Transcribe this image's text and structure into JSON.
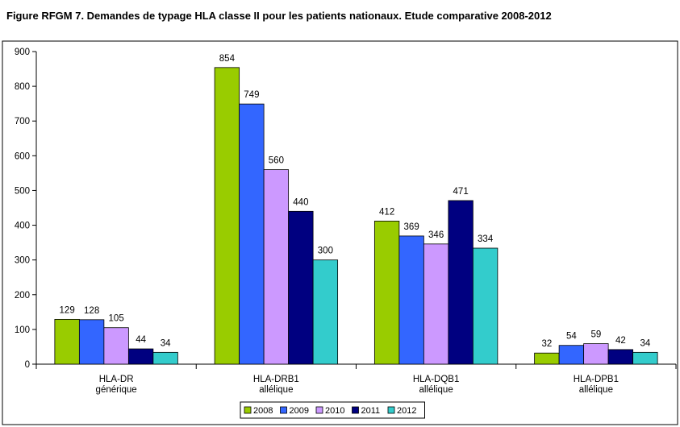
{
  "chart_data": {
    "type": "bar",
    "title": "Figure RFGM 7. Demandes de typage HLA classe II pour les patients nationaux. Etude comparative 2008-2012",
    "categories": [
      [
        "HLA-DR",
        "générique"
      ],
      [
        "HLA-DRB1",
        "allélique"
      ],
      [
        "HLA-DQB1",
        "allélique"
      ],
      [
        "HLA-DPB1",
        "allélique"
      ]
    ],
    "series": [
      {
        "name": "2008",
        "color": "#99CC00",
        "values": [
          129,
          854,
          412,
          32
        ]
      },
      {
        "name": "2009",
        "color": "#3366FF",
        "values": [
          128,
          749,
          369,
          54
        ]
      },
      {
        "name": "2010",
        "color": "#CC99FF",
        "values": [
          105,
          560,
          346,
          59
        ]
      },
      {
        "name": "2011",
        "color": "#000080",
        "values": [
          44,
          440,
          471,
          42
        ]
      },
      {
        "name": "2012",
        "color": "#33CCCC",
        "values": [
          34,
          300,
          334,
          34
        ]
      }
    ],
    "ylim": [
      0,
      900
    ],
    "yticks": [
      0,
      100,
      200,
      300,
      400,
      500,
      600,
      700,
      800,
      900
    ],
    "xlabel": "",
    "ylabel": "",
    "grid": false,
    "legend": "bottom-center"
  }
}
